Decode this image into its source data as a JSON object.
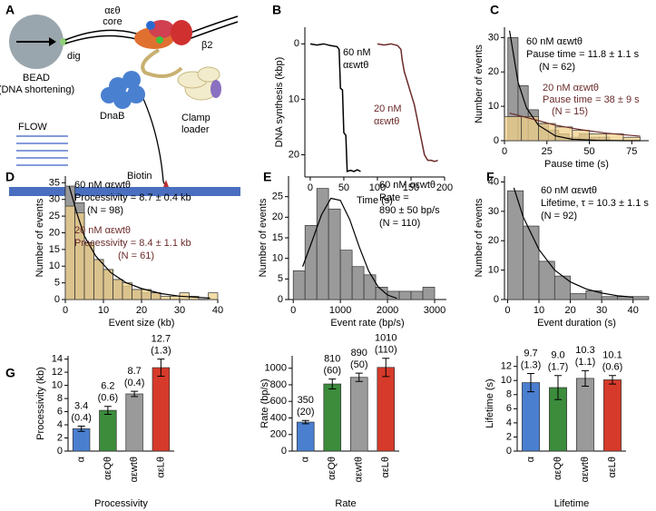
{
  "diagram": {
    "panel": "A",
    "bead": "BEAD",
    "bead_note": "(DNA shortening)",
    "dig": "dig",
    "core_name": "αεθ",
    "core_word": "core",
    "beta": "β2",
    "dnab": "DnaB",
    "clamp1": "Clamp",
    "clamp2": "loader",
    "biotin": "Biotin",
    "flow": "FLOW"
  },
  "chart_data": [
    {
      "type": "line",
      "panel": "B",
      "x_label": "Time (s)",
      "y_label": "DNA synthesis (kbp)",
      "xlim": [
        -8,
        200
      ],
      "xticks": [
        0,
        50,
        100,
        150,
        200
      ],
      "ylim": [
        -3,
        24
      ],
      "yticks": [
        0,
        10,
        20
      ],
      "y_inverted": true,
      "series": [
        {
          "color": "#000000",
          "x": [
            0,
            10,
            20,
            30,
            40,
            43,
            45,
            48,
            50,
            53,
            55,
            60,
            65,
            70,
            75
          ],
          "values": [
            0,
            0.2,
            0,
            0.3,
            0.5,
            1,
            8,
            8.3,
            16,
            16.5,
            23,
            22.8,
            23,
            22.7,
            23
          ]
        },
        {
          "color": "#6b2a2a",
          "x": [
            100,
            110,
            120,
            130,
            135,
            137,
            140,
            145,
            150,
            155,
            160,
            165,
            170,
            175,
            180,
            185,
            190
          ],
          "values": [
            0,
            0.2,
            0,
            0.3,
            1,
            3,
            5,
            7,
            9,
            11,
            14,
            17,
            20,
            21,
            21,
            21.2,
            21
          ]
        }
      ],
      "annotations": [
        {
          "text": "60 nM",
          "color": "#000000"
        },
        {
          "text": "αεwtθ",
          "color": "#000000"
        },
        {
          "text": "20 nM",
          "color": "#6b2a2a"
        },
        {
          "text": "αεwtθ",
          "color": "#6b2a2a"
        }
      ]
    },
    {
      "type": "histogram",
      "panel": "C",
      "x_label": "Pause time (s)",
      "y_label": "Number of events",
      "xlim": [
        0,
        85
      ],
      "xticks": [
        0,
        25,
        50,
        75
      ],
      "ylim": [
        0,
        33
      ],
      "yticks": [
        0,
        10,
        20,
        30
      ],
      "series": [
        {
          "color": "#9a9a9a",
          "bins": [
            2,
            8,
            14,
            20,
            26,
            32,
            38,
            44,
            50,
            56,
            62
          ],
          "values": [
            30,
            16,
            9,
            5,
            3,
            2,
            1,
            2,
            1,
            1
          ]
        },
        {
          "color": "#f0d08a",
          "bins": [
            0,
            10,
            20,
            30,
            40,
            50,
            60,
            70,
            80
          ],
          "values": [
            7,
            7,
            5,
            4,
            3,
            2,
            2,
            1
          ]
        }
      ],
      "curves": [
        {
          "color": "#000000",
          "x": [
            3,
            8,
            13,
            20,
            30,
            40,
            55,
            70,
            80
          ],
          "y": [
            32,
            17,
            9.5,
            4.5,
            1.4,
            0.4,
            0.1,
            0,
            0
          ]
        },
        {
          "color": "#6b2a2a",
          "x": [
            3,
            15,
            30,
            45,
            60,
            80
          ],
          "y": [
            8,
            6.5,
            4.5,
            3.2,
            2.2,
            1.3
          ]
        }
      ],
      "annotations": [
        {
          "text": "60 nM αεwtθ",
          "color": "#000000"
        },
        {
          "text": "Pause time = 11.8 ± 1.1 s",
          "color": "#000000"
        },
        {
          "text": "(N = 62)",
          "color": "#000000"
        },
        {
          "text": "20 nM αεwtθ",
          "color": "#6b2a2a"
        },
        {
          "text": "Pause time = 38 ± 9 s",
          "color": "#6b2a2a"
        },
        {
          "text": "(N = 15)",
          "color": "#6b2a2a"
        }
      ]
    },
    {
      "type": "histogram",
      "panel": "D",
      "x_label": "Event size (kb)",
      "y_label": "Number of events",
      "xlim": [
        0,
        40
      ],
      "xticks": [
        0,
        10,
        20,
        30,
        40
      ],
      "ylim": [
        0,
        37
      ],
      "yticks": [
        0,
        5,
        10,
        15,
        20,
        25,
        30,
        35
      ],
      "series": [
        {
          "color": "#9a9a9a",
          "bins": [
            0,
            2.5,
            5,
            7.5,
            10,
            12.5,
            15,
            17.5,
            20,
            22.5,
            25
          ],
          "values": [
            34,
            29,
            17,
            12,
            9,
            6,
            4,
            3,
            2,
            2
          ]
        },
        {
          "color": "#f0d08a",
          "bins": [
            0,
            2.5,
            5,
            7.5,
            10,
            12.5,
            15,
            17.5,
            20,
            22.5,
            25,
            27.5,
            30,
            32.5,
            35,
            37.5,
            40
          ],
          "values": [
            28,
            26,
            17,
            12,
            9,
            6,
            5,
            3,
            3,
            2,
            1,
            1,
            2,
            1,
            0,
            2
          ]
        }
      ],
      "curves": [
        {
          "color": "#000000",
          "x": [
            1,
            3,
            5,
            8,
            12,
            16,
            20,
            25,
            30,
            38
          ],
          "y": [
            34,
            26,
            19,
            13,
            8,
            5,
            3.3,
            1.8,
            1,
            0.4
          ]
        }
      ],
      "annotations": [
        {
          "text": "60 nM αεwtθ",
          "color": "#000000"
        },
        {
          "text": "Processivity = 8.7 ± 0.4 kb",
          "color": "#000000"
        },
        {
          "text": "(N = 98)",
          "color": "#000000"
        },
        {
          "text": "20 nM αεwtθ",
          "color": "#6b2a2a"
        },
        {
          "text": "Processivity = 8.4 ± 1.1 kb",
          "color": "#6b2a2a"
        },
        {
          "text": "(N = 61)",
          "color": "#6b2a2a"
        }
      ]
    },
    {
      "type": "histogram",
      "panel": "E",
      "x_label": "Event rate (bp/s)",
      "y_label": "Number of events",
      "xlim": [
        -100,
        3250
      ],
      "xticks": [
        0,
        1000,
        2000,
        3000
      ],
      "ylim": [
        0,
        30
      ],
      "yticks": [
        0,
        5,
        10,
        15,
        20,
        25
      ],
      "series": [
        {
          "color": "#9a9a9a",
          "bins": [
            0,
            250,
            500,
            750,
            1000,
            1250,
            1500,
            1750,
            2000,
            2250,
            2500,
            2750,
            3000
          ],
          "values": [
            7,
            18,
            27,
            22,
            12,
            8,
            6,
            3,
            2,
            2,
            2,
            3
          ]
        }
      ],
      "curves": [
        {
          "color": "#000000",
          "x": [
            200,
            400,
            600,
            800,
            1000,
            1200,
            1400,
            1600,
            1800,
            2000,
            2200
          ],
          "y": [
            8,
            14.2,
            20.6,
            24.6,
            24.1,
            19.4,
            12.8,
            6.95,
            3.1,
            1.1,
            0.3
          ]
        }
      ],
      "annotations": [
        {
          "text": "60 nM αεwtθ",
          "color": "#000000"
        },
        {
          "text": "Rate =",
          "color": "#000000"
        },
        {
          "text": "890 ± 50 bp/s",
          "color": "#000000"
        },
        {
          "text": "(N = 110)",
          "color": "#000000"
        }
      ]
    },
    {
      "type": "histogram",
      "panel": "F",
      "x_label": "Event duration (s)",
      "y_label": "Number of events",
      "xlim": [
        -1,
        45
      ],
      "xticks": [
        0,
        10,
        20,
        30,
        40
      ],
      "ylim": [
        0,
        42
      ],
      "yticks": [
        0,
        10,
        20,
        30,
        40
      ],
      "series": [
        {
          "color": "#9a9a9a",
          "bins": [
            0,
            5,
            10,
            15,
            20,
            25,
            30,
            35,
            40,
            45
          ],
          "values": [
            37,
            25,
            13,
            8,
            2,
            3,
            1,
            1,
            1
          ]
        }
      ],
      "curves": [
        {
          "color": "#000000",
          "x": [
            2,
            5,
            10,
            15,
            20,
            25,
            30,
            35,
            40
          ],
          "y": [
            38,
            28,
            17,
            10,
            6,
            3.6,
            2.2,
            1.3,
            0.8
          ]
        }
      ],
      "annotations": [
        {
          "text": "60 nM αεwtθ",
          "color": "#000000"
        },
        {
          "text": "Lifetime, τ = 10.3 ± 1.1 s",
          "color": "#000000"
        },
        {
          "text": "(N = 92)",
          "color": "#000000"
        }
      ]
    },
    {
      "type": "bar",
      "panel": "G",
      "x_label": "Processivity",
      "y_label": "Processivity (kb)",
      "categories": [
        "α",
        "αεQθ",
        "αεwtθ",
        "αεLθ"
      ],
      "colors": [
        "#4a7fd0",
        "#3c8c3c",
        "#9a9a9a",
        "#d63a2a"
      ],
      "ylim": [
        0,
        14.5
      ],
      "yticks": [
        0,
        2,
        4,
        6,
        8,
        10,
        12,
        14
      ],
      "values": [
        3.4,
        6.2,
        8.7,
        12.7
      ],
      "errors": [
        0.4,
        0.6,
        0.4,
        1.3
      ],
      "error_labels": [
        "(0.4)",
        "(0.6)",
        "(0.4)",
        "(1.3)"
      ]
    },
    {
      "type": "bar",
      "x_label": "Rate",
      "y_label": "Rate (bp/s)",
      "categories": [
        "α",
        "αεQθ",
        "αεwtθ",
        "αεLθ"
      ],
      "colors": [
        "#4a7fd0",
        "#3c8c3c",
        "#9a9a9a",
        "#d63a2a"
      ],
      "ylim": [
        0,
        1150
      ],
      "yticks": [
        0,
        200,
        400,
        600,
        800,
        1000
      ],
      "values": [
        350,
        810,
        890,
        1010
      ],
      "errors": [
        20,
        60,
        50,
        110
      ],
      "error_labels": [
        "(20)",
        "(60)",
        "(50)",
        "(110)"
      ]
    },
    {
      "type": "bar",
      "x_label": "Lifetime",
      "y_label": "Lifetime (s)",
      "categories": [
        "α",
        "αεQθ",
        "αεwtθ",
        "αεLθ"
      ],
      "colors": [
        "#4a7fd0",
        "#3c8c3c",
        "#9a9a9a",
        "#d63a2a"
      ],
      "ylim": [
        0,
        13.5
      ],
      "yticks": [
        0,
        2,
        4,
        6,
        8,
        10,
        12
      ],
      "values": [
        9.7,
        9,
        10.3,
        10.1
      ],
      "value_labels": [
        "9.7",
        "9.0",
        "10.3",
        "10.1"
      ],
      "errors": [
        1.3,
        1.7,
        1.1,
        0.6
      ],
      "error_labels": [
        "(1.3)",
        "(1.7)",
        "(1.1)",
        "(0.6)"
      ]
    }
  ]
}
